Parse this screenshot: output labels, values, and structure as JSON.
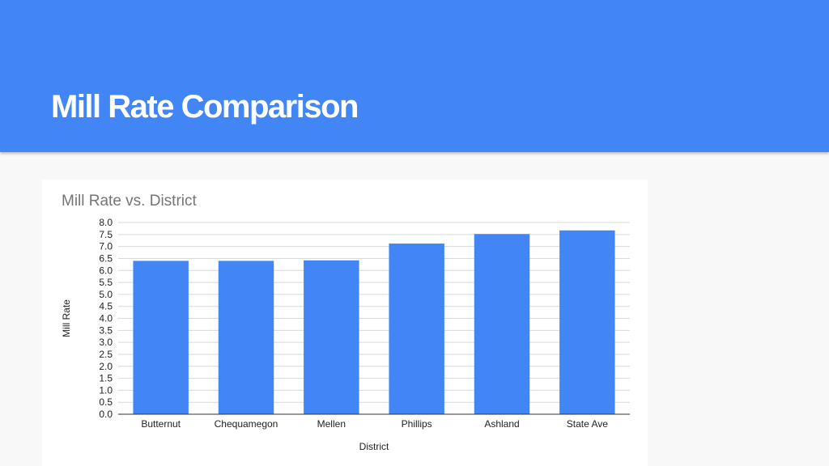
{
  "slide": {
    "title": "Mill Rate Comparison"
  },
  "colors": {
    "header": "#4285f4",
    "bar": "#4285f4"
  },
  "chart_data": {
    "type": "bar",
    "title": "Mill Rate vs. District",
    "xlabel": "District",
    "ylabel": "Mill Rate",
    "categories": [
      "Butternut",
      "Chequamegon",
      "Mellen",
      "Phillips",
      "Ashland",
      "State Ave"
    ],
    "values": [
      6.4,
      6.4,
      6.42,
      7.12,
      7.52,
      7.67
    ],
    "ylim": [
      0,
      8
    ],
    "yticks": [
      "0.0",
      "0.5",
      "1.0",
      "1.5",
      "2.0",
      "2.5",
      "3.0",
      "3.5",
      "4.0",
      "4.5",
      "5.0",
      "5.5",
      "6.0",
      "6.5",
      "7.0",
      "7.5",
      "8.0"
    ],
    "grid": true,
    "legend": "none"
  }
}
